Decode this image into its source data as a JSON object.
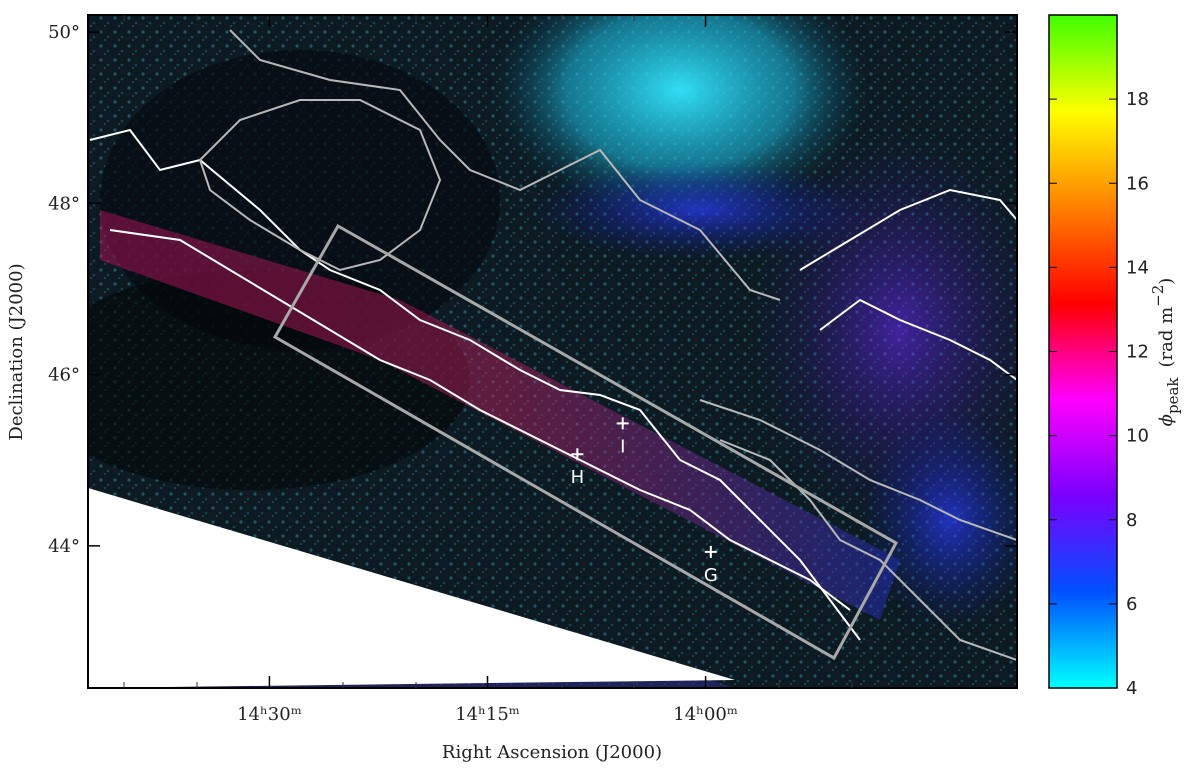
{
  "chart_data": {
    "type": "image",
    "x_label": "Right Ascension (J2000)",
    "y_label": "Declination (J2000)",
    "xlim": [
      14.708,
      13.643
    ],
    "ylim": [
      42.34,
      50.2
    ],
    "xticks": [
      {
        "value": 14.5,
        "label": "14ʰ30ᵐ"
      },
      {
        "value": 14.25,
        "label": "14ʰ15ᵐ"
      },
      {
        "value": 14.0,
        "label": "14ʰ00ᵐ"
      }
    ],
    "yticks": [
      {
        "value": 44,
        "label": "44°"
      },
      {
        "value": 46,
        "label": "46°"
      },
      {
        "value": 48,
        "label": "48°"
      },
      {
        "value": 50,
        "label": "50°"
      }
    ],
    "markers": [
      {
        "label": "G",
        "x": 13.994,
        "y": 43.93
      },
      {
        "label": "H",
        "x": 14.147,
        "y": 45.07
      },
      {
        "label": "I",
        "x": 14.095,
        "y": 45.43
      }
    ],
    "colorbar": {
      "lim": [
        4,
        20
      ],
      "ticks": [
        4,
        6,
        8,
        10,
        12,
        14,
        16,
        18
      ],
      "colors": [
        "#00ffff",
        "#0050ff",
        "#7a00ff",
        "#ff00ff",
        "#ff0000",
        "#ff8000",
        "#ffff00",
        "#40ff00"
      ],
      "label": {
        "symbol": "ϕ",
        "subscript": "peak",
        "unit": "(rad m",
        "superscript": "−2",
        "close": ")"
      }
    }
  }
}
